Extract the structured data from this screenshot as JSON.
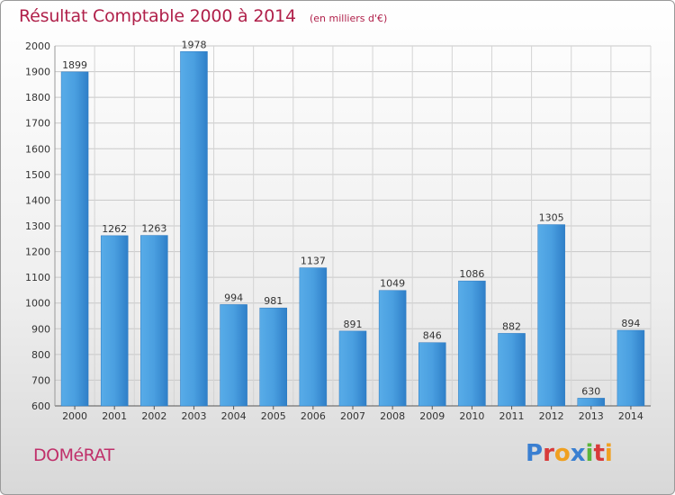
{
  "header": {
    "title": "Résultat Comptable 2000 à 2014",
    "unit": "(en milliers d'€)"
  },
  "footer": {
    "town": "DOMéRAT",
    "brand": "Proxiti",
    "brand_colors": [
      "#3a7fd1",
      "#d83a3a",
      "#f0a020",
      "#3a7fd1",
      "#5bb53a",
      "#d83a3a",
      "#f0a020"
    ]
  },
  "chart_data": {
    "type": "bar",
    "categories": [
      "2000",
      "2001",
      "2002",
      "2003",
      "2004",
      "2005",
      "2006",
      "2007",
      "2008",
      "2009",
      "2010",
      "2011",
      "2012",
      "2013",
      "2014"
    ],
    "values": [
      1899,
      1262,
      1263,
      1978,
      994,
      981,
      1137,
      891,
      1049,
      846,
      1086,
      882,
      1305,
      630,
      894
    ],
    "ylim": [
      600,
      2000
    ],
    "yticks": [
      600,
      700,
      800,
      900,
      1000,
      1100,
      1200,
      1300,
      1400,
      1500,
      1600,
      1700,
      1800,
      1900,
      2000
    ],
    "grid": true,
    "bar_color": "#3f95d8",
    "bar_color_light": "#5cb0ec",
    "bar_color_dark": "#2a78c0",
    "title_color": "#b0204a"
  }
}
